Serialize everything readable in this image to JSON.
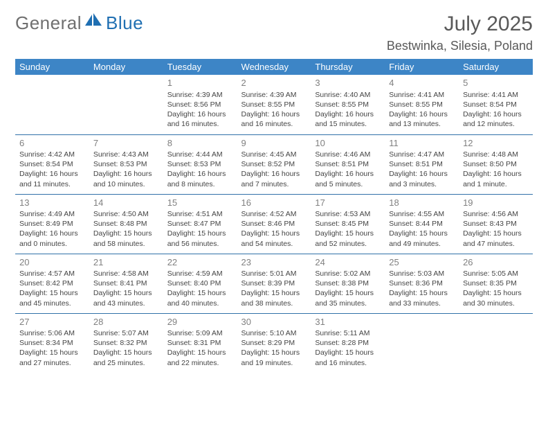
{
  "brand": {
    "part1": "General",
    "part2": "Blue"
  },
  "title": "July 2025",
  "location": "Bestwinka, Silesia, Poland",
  "colors": {
    "header_bg": "#3d85c6",
    "header_text": "#ffffff",
    "row_border": "#3070a8",
    "daynum": "#808080",
    "body_text": "#444444",
    "title_text": "#595959",
    "brand_gray": "#6f6f6f",
    "brand_blue": "#1f6fb2"
  },
  "weekdays": [
    "Sunday",
    "Monday",
    "Tuesday",
    "Wednesday",
    "Thursday",
    "Friday",
    "Saturday"
  ],
  "weeks": [
    [
      null,
      null,
      {
        "n": "1",
        "sr": "4:39 AM",
        "ss": "8:56 PM",
        "dl": "16 hours and 16 minutes."
      },
      {
        "n": "2",
        "sr": "4:39 AM",
        "ss": "8:55 PM",
        "dl": "16 hours and 16 minutes."
      },
      {
        "n": "3",
        "sr": "4:40 AM",
        "ss": "8:55 PM",
        "dl": "16 hours and 15 minutes."
      },
      {
        "n": "4",
        "sr": "4:41 AM",
        "ss": "8:55 PM",
        "dl": "16 hours and 13 minutes."
      },
      {
        "n": "5",
        "sr": "4:41 AM",
        "ss": "8:54 PM",
        "dl": "16 hours and 12 minutes."
      }
    ],
    [
      {
        "n": "6",
        "sr": "4:42 AM",
        "ss": "8:54 PM",
        "dl": "16 hours and 11 minutes."
      },
      {
        "n": "7",
        "sr": "4:43 AM",
        "ss": "8:53 PM",
        "dl": "16 hours and 10 minutes."
      },
      {
        "n": "8",
        "sr": "4:44 AM",
        "ss": "8:53 PM",
        "dl": "16 hours and 8 minutes."
      },
      {
        "n": "9",
        "sr": "4:45 AM",
        "ss": "8:52 PM",
        "dl": "16 hours and 7 minutes."
      },
      {
        "n": "10",
        "sr": "4:46 AM",
        "ss": "8:51 PM",
        "dl": "16 hours and 5 minutes."
      },
      {
        "n": "11",
        "sr": "4:47 AM",
        "ss": "8:51 PM",
        "dl": "16 hours and 3 minutes."
      },
      {
        "n": "12",
        "sr": "4:48 AM",
        "ss": "8:50 PM",
        "dl": "16 hours and 1 minute."
      }
    ],
    [
      {
        "n": "13",
        "sr": "4:49 AM",
        "ss": "8:49 PM",
        "dl": "16 hours and 0 minutes."
      },
      {
        "n": "14",
        "sr": "4:50 AM",
        "ss": "8:48 PM",
        "dl": "15 hours and 58 minutes."
      },
      {
        "n": "15",
        "sr": "4:51 AM",
        "ss": "8:47 PM",
        "dl": "15 hours and 56 minutes."
      },
      {
        "n": "16",
        "sr": "4:52 AM",
        "ss": "8:46 PM",
        "dl": "15 hours and 54 minutes."
      },
      {
        "n": "17",
        "sr": "4:53 AM",
        "ss": "8:45 PM",
        "dl": "15 hours and 52 minutes."
      },
      {
        "n": "18",
        "sr": "4:55 AM",
        "ss": "8:44 PM",
        "dl": "15 hours and 49 minutes."
      },
      {
        "n": "19",
        "sr": "4:56 AM",
        "ss": "8:43 PM",
        "dl": "15 hours and 47 minutes."
      }
    ],
    [
      {
        "n": "20",
        "sr": "4:57 AM",
        "ss": "8:42 PM",
        "dl": "15 hours and 45 minutes."
      },
      {
        "n": "21",
        "sr": "4:58 AM",
        "ss": "8:41 PM",
        "dl": "15 hours and 43 minutes."
      },
      {
        "n": "22",
        "sr": "4:59 AM",
        "ss": "8:40 PM",
        "dl": "15 hours and 40 minutes."
      },
      {
        "n": "23",
        "sr": "5:01 AM",
        "ss": "8:39 PM",
        "dl": "15 hours and 38 minutes."
      },
      {
        "n": "24",
        "sr": "5:02 AM",
        "ss": "8:38 PM",
        "dl": "15 hours and 35 minutes."
      },
      {
        "n": "25",
        "sr": "5:03 AM",
        "ss": "8:36 PM",
        "dl": "15 hours and 33 minutes."
      },
      {
        "n": "26",
        "sr": "5:05 AM",
        "ss": "8:35 PM",
        "dl": "15 hours and 30 minutes."
      }
    ],
    [
      {
        "n": "27",
        "sr": "5:06 AM",
        "ss": "8:34 PM",
        "dl": "15 hours and 27 minutes."
      },
      {
        "n": "28",
        "sr": "5:07 AM",
        "ss": "8:32 PM",
        "dl": "15 hours and 25 minutes."
      },
      {
        "n": "29",
        "sr": "5:09 AM",
        "ss": "8:31 PM",
        "dl": "15 hours and 22 minutes."
      },
      {
        "n": "30",
        "sr": "5:10 AM",
        "ss": "8:29 PM",
        "dl": "15 hours and 19 minutes."
      },
      {
        "n": "31",
        "sr": "5:11 AM",
        "ss": "8:28 PM",
        "dl": "15 hours and 16 minutes."
      },
      null,
      null
    ]
  ]
}
